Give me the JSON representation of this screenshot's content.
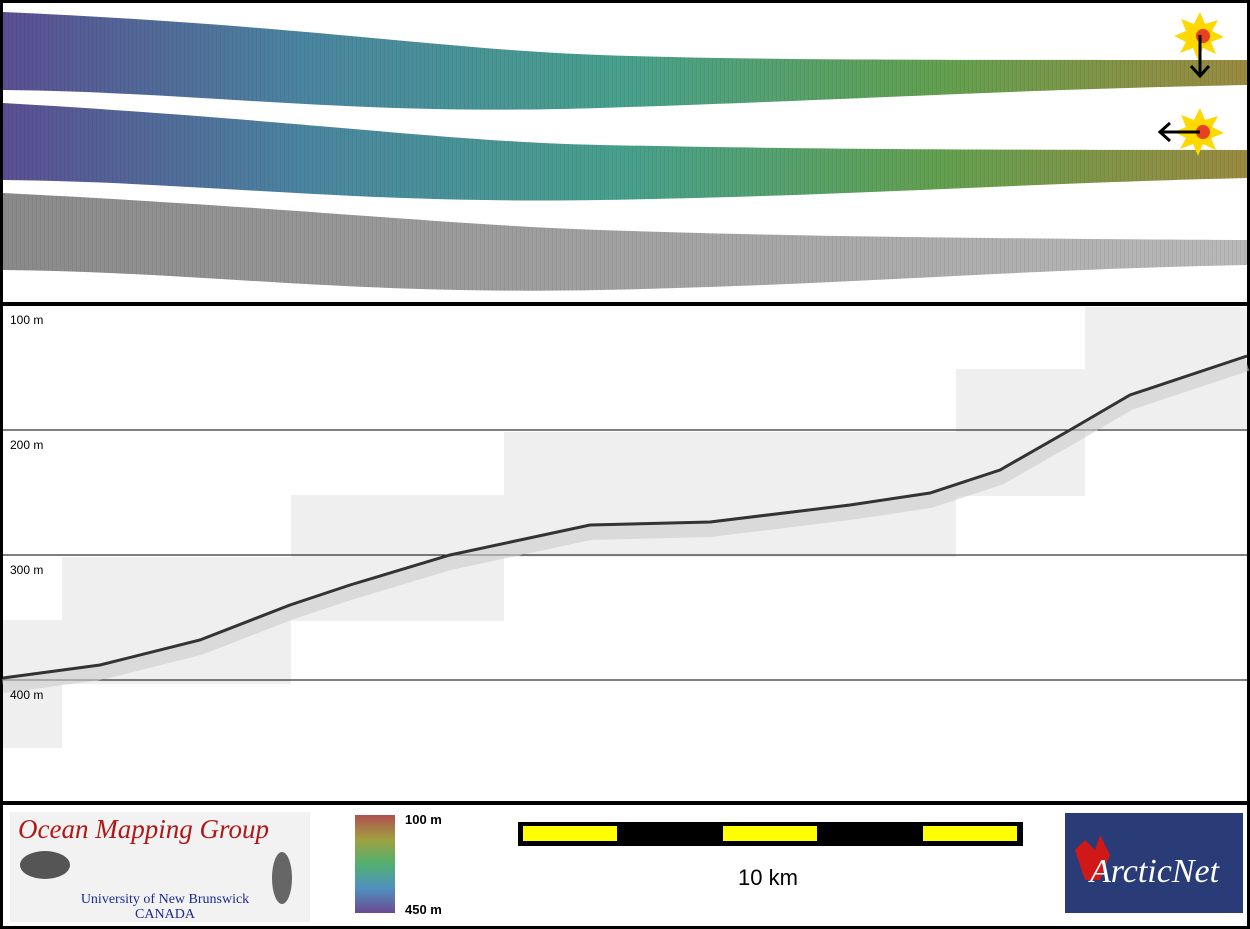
{
  "profile": {
    "depth_labels": [
      "100 m",
      "200 m",
      "300 m",
      "400 m"
    ]
  },
  "footer": {
    "logo": {
      "title": "Ocean Mapping Group",
      "subtitle": "University of New Brunswick",
      "country": "CANADA"
    },
    "colorbar": {
      "top": "100 m",
      "bottom": "450 m"
    },
    "scale_bar": {
      "label": "10 km"
    },
    "partner_logo": "ArcticNet"
  }
}
